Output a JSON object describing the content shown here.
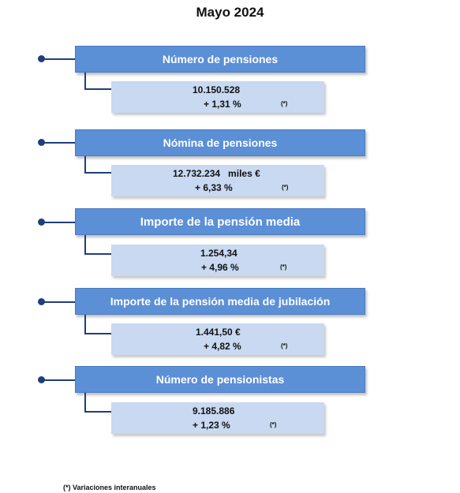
{
  "title": "Mayo 2024",
  "items": [
    {
      "header": "Número de pensiones",
      "value": "10.150.528",
      "variation": "+ 1,31 %",
      "note": "(*)"
    },
    {
      "header": "Nómina de pensiones",
      "value": "12.732.234   miles €",
      "variation": "+ 6,33 %",
      "note": "(*)"
    },
    {
      "header": "Importe de la pensión media",
      "value": "1.254,34",
      "variation": "+ 4,96 %",
      "note": "(*)"
    },
    {
      "header": "Importe de la pensión media de jubilación",
      "value": "1.441,50 €",
      "variation": "+ 4,82 %",
      "note": "(*)"
    },
    {
      "header": "Número de pensionistas",
      "value": "9.185.886",
      "variation": "+ 1,23 %",
      "note": "(*)"
    }
  ],
  "footnote": "(*) Variaciones interanuales"
}
